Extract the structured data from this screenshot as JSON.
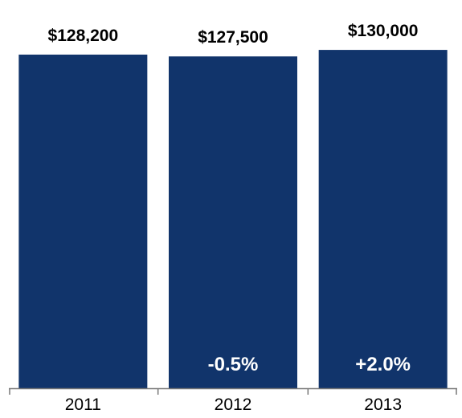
{
  "colors": {
    "bar": "#11346b",
    "axis": "#777777",
    "value_text": "#000000",
    "change_text": "#ffffff"
  },
  "chart_data": {
    "type": "bar",
    "title": "",
    "xlabel": "",
    "ylabel": "",
    "categories": [
      "2011",
      "2012",
      "2013"
    ],
    "values": [
      128200,
      127500,
      130000
    ],
    "value_labels": [
      "$128,200",
      "$127,500",
      "$130,000"
    ],
    "change_labels": [
      "",
      "-0.5%",
      "+2.0%"
    ],
    "ylim": [
      0,
      132500
    ],
    "grid": false,
    "legend": "none"
  }
}
